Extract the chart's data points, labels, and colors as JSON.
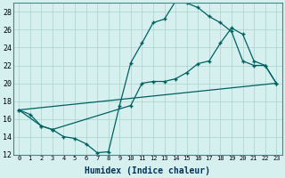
{
  "xlabel": "Humidex (Indice chaleur)",
  "ylabel": "",
  "xlim": [
    -0.5,
    23.5
  ],
  "ylim": [
    12,
    29
  ],
  "background_color": "#d6f0f0",
  "grid_color": "#b0d8d0",
  "line_color": "#006060",
  "line1_x": [
    0,
    1,
    2,
    3,
    4,
    5,
    6,
    7,
    8,
    9,
    10,
    11,
    12,
    13,
    14,
    15,
    16,
    17,
    18,
    19,
    20,
    21,
    22,
    23
  ],
  "line1_y": [
    17.0,
    16.5,
    15.2,
    14.8,
    14.0,
    13.8,
    13.2,
    12.2,
    12.3,
    17.5,
    22.3,
    24.5,
    26.8,
    27.2,
    29.2,
    29.0,
    28.5,
    27.5,
    26.8,
    25.8,
    22.5,
    22.0,
    22.0,
    20.0
  ],
  "line2_x": [
    0,
    2,
    3,
    10,
    11,
    12,
    13,
    14,
    15,
    16,
    17,
    18,
    19,
    20,
    21,
    22,
    23
  ],
  "line2_y": [
    17.0,
    15.2,
    14.8,
    17.5,
    20.0,
    20.2,
    20.2,
    20.5,
    21.2,
    22.2,
    22.5,
    24.5,
    26.2,
    25.5,
    22.5,
    22.0,
    20.0
  ],
  "line3_x": [
    0,
    23
  ],
  "line3_y": [
    17.0,
    20.0
  ],
  "xtick_labels": [
    "0",
    "1",
    "2",
    "3",
    "4",
    "5",
    "6",
    "7",
    "8",
    "9",
    "10",
    "11",
    "12",
    "13",
    "14",
    "15",
    "16",
    "17",
    "18",
    "19",
    "20",
    "21",
    "22",
    "23"
  ],
  "ytick_values": [
    12,
    14,
    16,
    18,
    20,
    22,
    24,
    26,
    28
  ]
}
